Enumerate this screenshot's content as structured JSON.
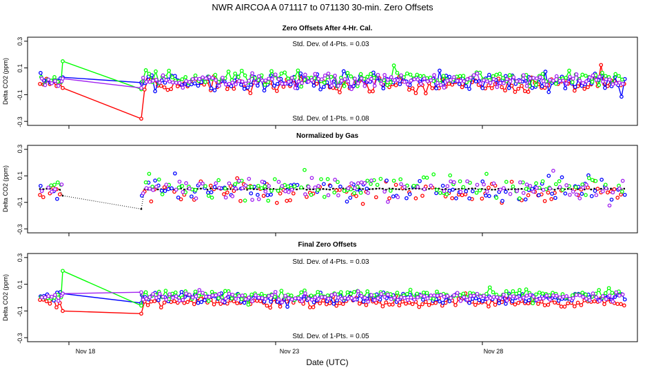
{
  "chart_data": {
    "type": "line",
    "title": "NWR   AIRCOA A   071117 to 071130   30-min. Zero Offsets",
    "xlabel": "Date (UTC)",
    "x_ticks": [
      {
        "label": "Nov 18",
        "day": 18
      },
      {
        "label": "Nov 23",
        "day": 23
      },
      {
        "label": "Nov 28",
        "day": 28
      }
    ],
    "xlim": [
      17.0,
      31.75
    ],
    "colors": {
      "red": "#ff0000",
      "blue": "#0000ff",
      "green": "#00ff00",
      "purple": "#a020f0",
      "black": "#000000"
    },
    "panels": [
      {
        "title": "Zero Offsets After 4-Hr. Cal.",
        "ylabel": "Delta CO2 (ppm)",
        "ylim": [
          -0.33,
          0.33
        ],
        "yticks": [
          "0.3",
          "0.1",
          "-0.1",
          "-0.3"
        ],
        "yticks_values": [
          0.3,
          0.1,
          -0.1,
          -0.3
        ],
        "annot_top": "Std. Dev. of 4-Pts. =  0.03",
        "annot_bottom": "Std. Dev. of 1-Pts. =  0.08",
        "mode": "lines",
        "series": [
          {
            "name": "red",
            "color": "red",
            "offset": -0.025,
            "spread": 0.05,
            "gap_points": [
              [
                17.85,
                -0.05
              ],
              [
                19.75,
                -0.28
              ]
            ]
          },
          {
            "name": "blue",
            "color": "blue",
            "offset": 0.0,
            "spread": 0.055,
            "gap_points": [
              [
                17.85,
                0.03
              ],
              [
                19.75,
                -0.01
              ]
            ]
          },
          {
            "name": "green",
            "color": "green",
            "offset": 0.025,
            "spread": 0.05,
            "gap_points": [
              [
                17.85,
                0.15
              ],
              [
                19.75,
                -0.06
              ]
            ]
          },
          {
            "name": "purple",
            "color": "purple",
            "offset": 0.005,
            "spread": 0.045,
            "gap_points": [
              [
                17.85,
                0.02
              ],
              [
                19.75,
                -0.05
              ]
            ]
          }
        ]
      },
      {
        "title": "Normalized by Gas",
        "ylabel": "Delta CO2 (ppm)",
        "ylim": [
          -0.33,
          0.33
        ],
        "yticks": [
          "0.3",
          "0.1",
          "-0.1",
          "-0.3"
        ],
        "yticks_values": [
          0.3,
          0.1,
          -0.1,
          -0.3
        ],
        "mode": "points",
        "reference": {
          "color": "black",
          "gap_points": [
            [
              17.85,
              -0.05
            ],
            [
              19.75,
              -0.15
            ]
          ]
        },
        "series": [
          {
            "name": "red",
            "color": "red",
            "offset": -0.02,
            "spread": 0.075
          },
          {
            "name": "blue",
            "color": "blue",
            "offset": 0.0,
            "spread": 0.08
          },
          {
            "name": "green",
            "color": "green",
            "offset": 0.02,
            "spread": 0.075
          },
          {
            "name": "purple",
            "color": "purple",
            "offset": 0.01,
            "spread": 0.07
          }
        ]
      },
      {
        "title": "Final Zero Offsets",
        "ylabel": "Delta CO2 (ppm)",
        "ylim": [
          -0.33,
          0.33
        ],
        "yticks": [
          "0.3",
          "0.1",
          "-0.1",
          "-0.3"
        ],
        "yticks_values": [
          0.3,
          0.1,
          -0.1,
          -0.3
        ],
        "annot_top": "Std. Dev. of 4-Pts. =  0.03",
        "annot_bottom": "Std. Dev. of 1-Pts. =  0.05",
        "mode": "lines",
        "series": [
          {
            "name": "red",
            "color": "red",
            "offset": -0.035,
            "spread": 0.03,
            "gap_points": [
              [
                17.85,
                -0.1
              ],
              [
                19.75,
                -0.12
              ]
            ]
          },
          {
            "name": "blue",
            "color": "blue",
            "offset": 0.0,
            "spread": 0.035,
            "gap_points": [
              [
                17.85,
                0.03
              ],
              [
                19.75,
                -0.04
              ]
            ]
          },
          {
            "name": "green",
            "color": "green",
            "offset": 0.02,
            "spread": 0.035,
            "gap_points": [
              [
                17.85,
                0.2
              ],
              [
                19.75,
                -0.06
              ]
            ]
          },
          {
            "name": "purple",
            "color": "purple",
            "offset": 0.005,
            "spread": 0.03,
            "gap_points": [
              [
                17.85,
                0.03
              ],
              [
                19.75,
                0.04
              ]
            ]
          }
        ]
      }
    ],
    "segments": [
      [
        17.3,
        17.85
      ],
      [
        19.75,
        31.45
      ]
    ],
    "sample_step_days": 0.08
  }
}
